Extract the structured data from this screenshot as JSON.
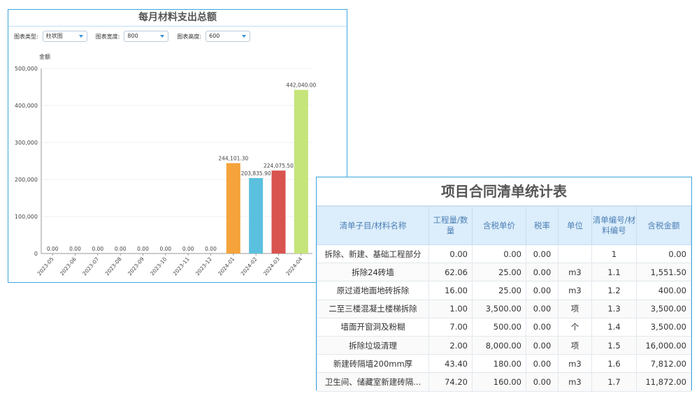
{
  "chart_panel": {
    "title": "每月材料支出总额",
    "controls": [
      {
        "label": "图表类型:",
        "value": "柱状图"
      },
      {
        "label": "图表宽度:",
        "value": "800"
      },
      {
        "label": "图表高度:",
        "value": "600"
      }
    ]
  },
  "chart_data": {
    "type": "bar",
    "ylabel": "金额",
    "ylim": [
      0,
      500000
    ],
    "yticks": [
      "0",
      "100,000",
      "200,000",
      "300,000",
      "400,000",
      "500,000"
    ],
    "categories": [
      "2023-05",
      "2023-06",
      "2023-07",
      "2023-08",
      "2023-09",
      "2023-10",
      "2023-11",
      "2023-12",
      "2024-01",
      "2024-02",
      "2024-03",
      "2024-04"
    ],
    "values": [
      0,
      0,
      0,
      0,
      0,
      0,
      0,
      0,
      244101.3,
      203835.9,
      224075.5,
      442040.0
    ],
    "labels": [
      "0.00",
      "0.00",
      "0.00",
      "0.00",
      "0.00",
      "0.00",
      "0.00",
      "0.00",
      "244,101.30",
      "203,835.90",
      "224,075.50",
      "442,040.00"
    ],
    "colors": [
      "#f5a33a",
      "#f5a33a",
      "#f5a33a",
      "#f5a33a",
      "#f5a33a",
      "#f5a33a",
      "#f5a33a",
      "#f5a33a",
      "#f5a33a",
      "#5bc0de",
      "#d9534f",
      "#c5e47a"
    ],
    "grid": true
  },
  "table_panel": {
    "title": "项目合同清单统计表",
    "headers": [
      "清单子目/材料名称",
      "工程量/数量",
      "含税单价",
      "税率",
      "单位",
      "清单编号/材料编号",
      "含税金额"
    ],
    "rows": [
      [
        "拆除、新建、基础工程部分",
        "0.00",
        "0.00",
        "0.00",
        "",
        "1",
        "0.00"
      ],
      [
        "拆除24砖墙",
        "62.06",
        "25.00",
        "0.00",
        "m3",
        "1.1",
        "1,551.50"
      ],
      [
        "原过道地面地砖拆除",
        "16.00",
        "25.00",
        "0.00",
        "m3",
        "1.2",
        "400.00"
      ],
      [
        "二至三楼混凝土楼梯拆除",
        "1.00",
        "3,500.00",
        "0.00",
        "项",
        "1.3",
        "3,500.00"
      ],
      [
        "墙面开窗洞及粉糊",
        "7.00",
        "500.00",
        "0.00",
        "个",
        "1.4",
        "3,500.00"
      ],
      [
        "拆除垃圾清理",
        "2.00",
        "8,000.00",
        "0.00",
        "项",
        "1.5",
        "16,000.00"
      ],
      [
        "新建砖隔墙200mm厚",
        "43.40",
        "180.00",
        "0.00",
        "m3",
        "1.6",
        "7,812.00"
      ],
      [
        "卫生间、储藏室新建砖隔...",
        "74.20",
        "160.00",
        "0.00",
        "m3",
        "1.7",
        "11,872.00"
      ]
    ]
  }
}
